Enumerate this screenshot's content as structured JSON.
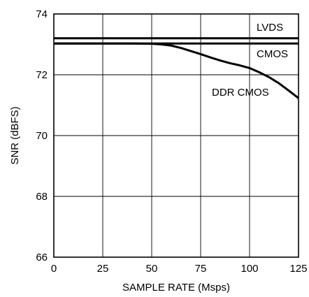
{
  "chart_data": {
    "type": "line",
    "xlabel": "SAMPLE RATE (Msps)",
    "ylabel": "SNR (dBFS)",
    "xlim": [
      0,
      125
    ],
    "ylim": [
      66,
      74
    ],
    "xticks": [
      0,
      25,
      50,
      75,
      100,
      125
    ],
    "yticks": [
      66,
      68,
      70,
      72,
      74
    ],
    "x_tick_labels": [
      "0",
      "25",
      "50",
      "75",
      "100",
      "125"
    ],
    "y_tick_labels": [
      "66",
      "68",
      "70",
      "72",
      "74"
    ],
    "grid": true,
    "legend": "none",
    "line_color": "#000000",
    "series": [
      {
        "name": "LVDS",
        "x": [
          0,
          125
        ],
        "y": [
          73.2,
          73.2
        ]
      },
      {
        "name": "CMOS",
        "x": [
          0,
          125
        ],
        "y": [
          73.03,
          73.03
        ]
      },
      {
        "name": "DDR CMOS",
        "x": [
          0,
          10,
          20,
          30,
          40,
          50,
          55,
          60,
          65,
          70,
          75,
          80,
          85,
          90,
          95,
          100,
          105,
          110,
          115,
          120,
          125
        ],
        "y": [
          73.03,
          73.03,
          73.03,
          73.03,
          73.03,
          73.02,
          73.0,
          72.96,
          72.88,
          72.78,
          72.68,
          72.57,
          72.47,
          72.38,
          72.31,
          72.22,
          72.08,
          71.92,
          71.72,
          71.48,
          71.23
        ]
      }
    ]
  }
}
